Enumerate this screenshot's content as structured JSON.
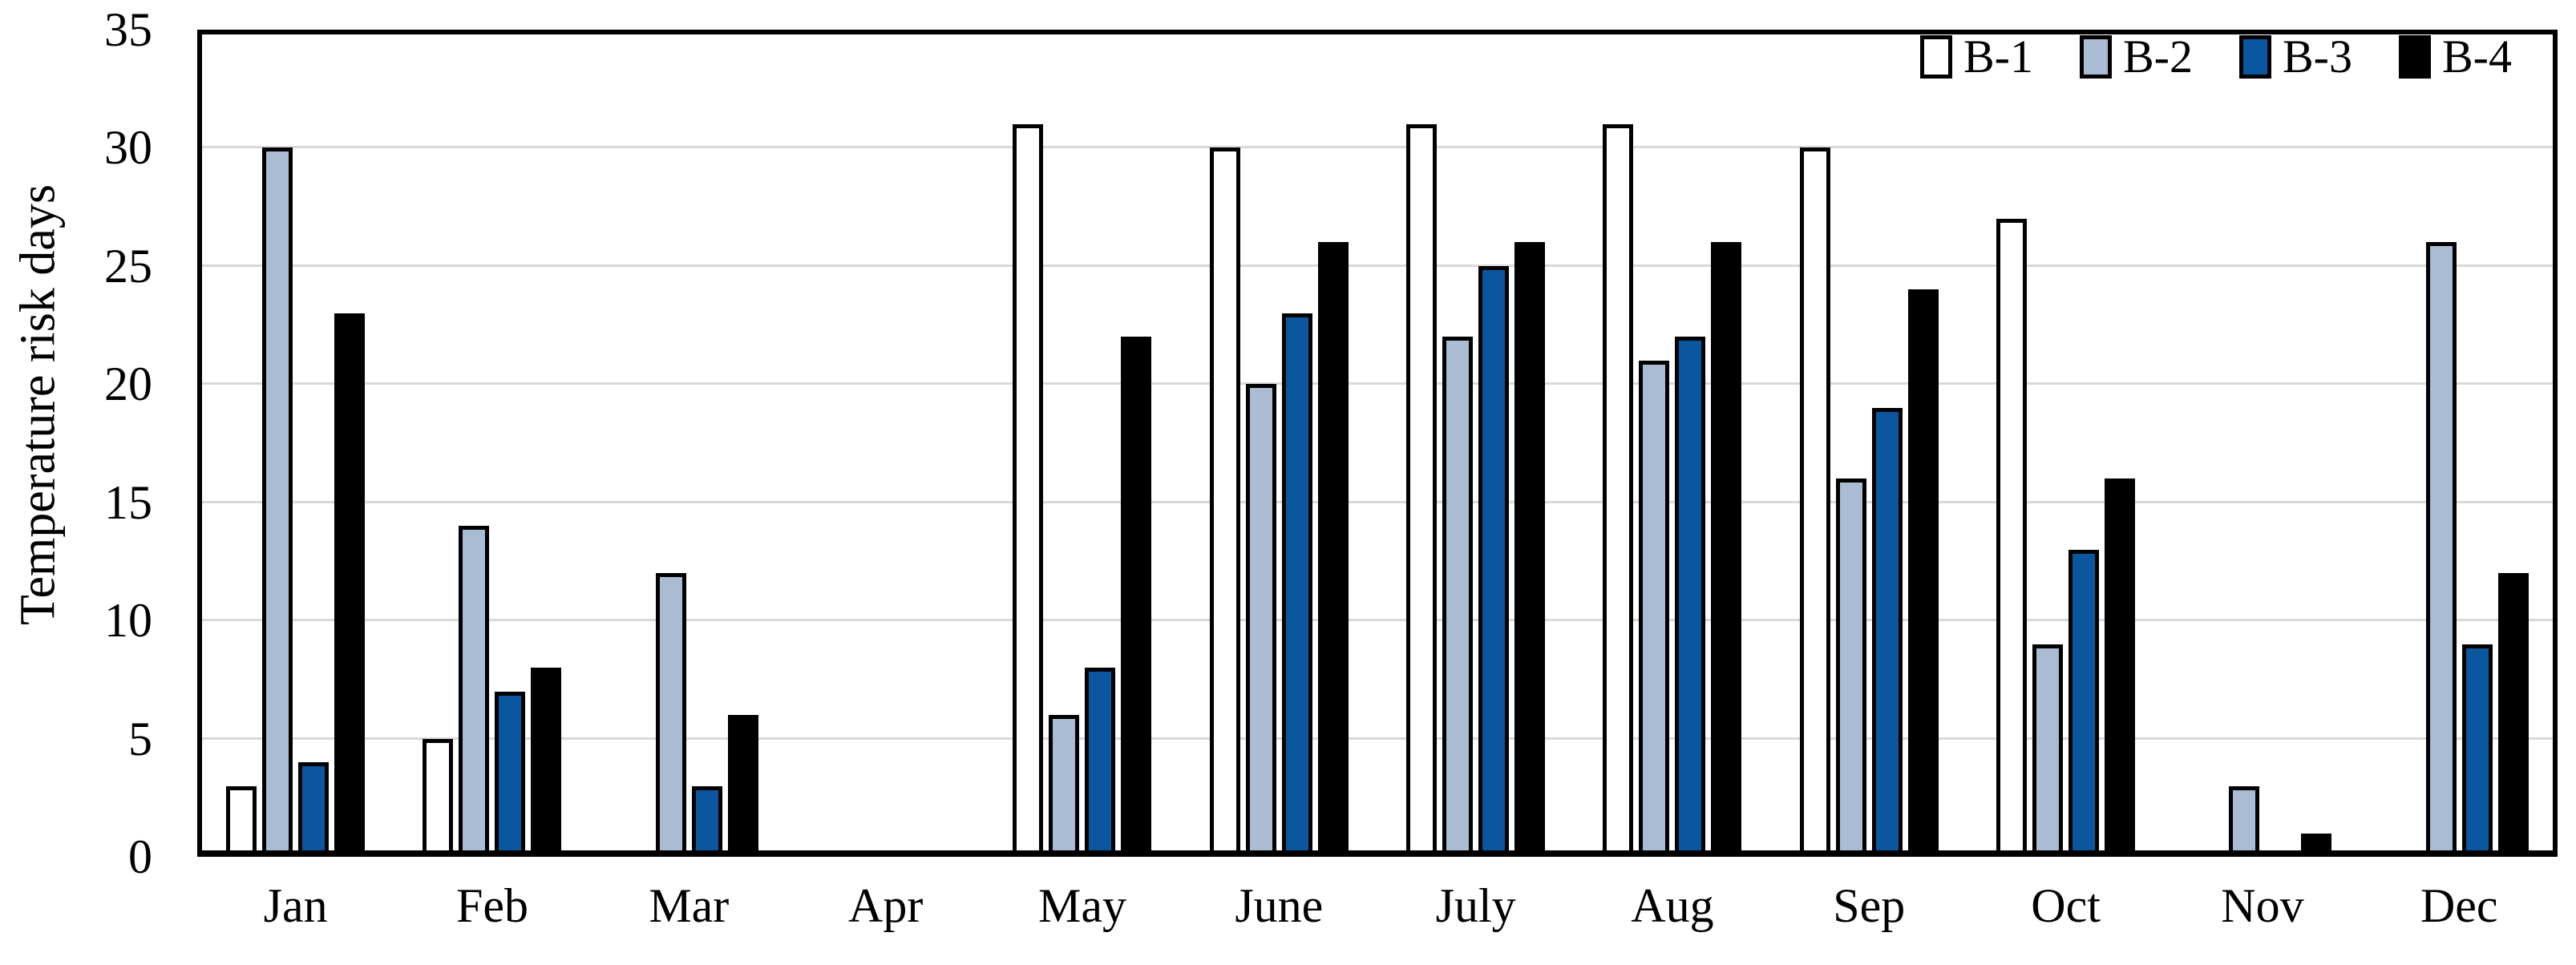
{
  "chart_data": {
    "type": "bar",
    "title": "",
    "xlabel": "",
    "ylabel": "Temperature risk days",
    "categories": [
      "Jan",
      "Feb",
      "Mar",
      "Apr",
      "May",
      "June",
      "July",
      "Aug",
      "Sep",
      "Oct",
      "Nov",
      "Dec"
    ],
    "series": [
      {
        "name": "B-1",
        "color": "#FFFFFF",
        "values": [
          3,
          5,
          0,
          0,
          31,
          30,
          31,
          31,
          30,
          27,
          0,
          0
        ]
      },
      {
        "name": "B-2",
        "color": "#A9BCD3",
        "values": [
          30,
          14,
          12,
          0,
          6,
          20,
          22,
          21,
          16,
          9,
          3,
          26
        ]
      },
      {
        "name": "B-3",
        "color": "#0A57A0",
        "values": [
          4,
          7,
          3,
          0,
          8,
          23,
          25,
          22,
          19,
          13,
          0,
          9
        ]
      },
      {
        "name": "B-4",
        "color": "#000000",
        "values": [
          23,
          8,
          6,
          0,
          22,
          26,
          26,
          26,
          24,
          16,
          1,
          12
        ]
      }
    ],
    "ylim": [
      0,
      35
    ],
    "yticks": [
      0,
      5,
      10,
      15,
      20,
      25,
      30,
      35
    ],
    "grid": true,
    "gridline_color": "#D9D9D9",
    "bar_border_color": "#000000",
    "legend_position": "top-right",
    "legend_labels": [
      "B-1",
      "B-2",
      "B-3",
      "B-4"
    ]
  }
}
